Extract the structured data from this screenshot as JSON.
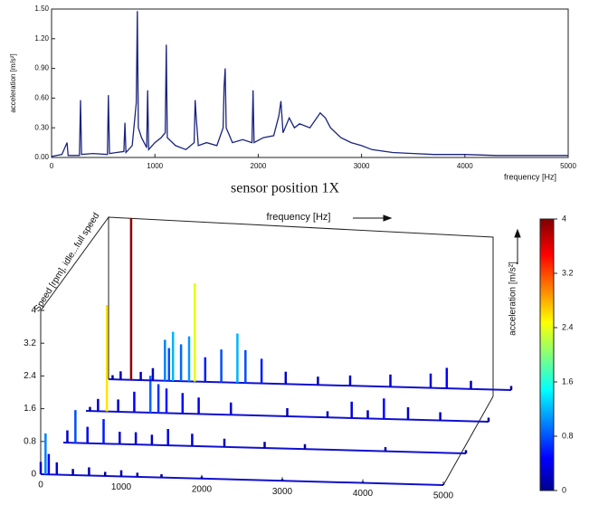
{
  "chart_data": [
    {
      "type": "line",
      "caption": "sensor position 1X",
      "xlabel": "frequency [Hz]",
      "ylabel": "acceleration [m/s²]",
      "color": "#1a237e",
      "xlim": [
        0,
        5000
      ],
      "xticks": [
        0,
        1000,
        2000,
        3000,
        4000,
        5000
      ],
      "ylim": [
        0,
        1.5
      ],
      "yticks": [
        {
          "value": 0,
          "label": "0.00"
        },
        {
          "value": 0.3,
          "label": "0.30"
        },
        {
          "value": 0.6,
          "label": "0.60"
        },
        {
          "value": 0.9,
          "label": "0.90"
        },
        {
          "value": 1.2,
          "label": "1.20"
        },
        {
          "value": 1.5,
          "label": "1.50"
        }
      ],
      "x": [
        0,
        100,
        150,
        160,
        270,
        280,
        290,
        400,
        540,
        550,
        560,
        700,
        710,
        720,
        780,
        820,
        830,
        840,
        870,
        920,
        930,
        940,
        1000,
        1060,
        1100,
        1110,
        1120,
        1200,
        1300,
        1380,
        1390,
        1400,
        1420,
        1500,
        1600,
        1660,
        1670,
        1680,
        1690,
        1750,
        1850,
        1940,
        1950,
        1960,
        2050,
        2150,
        2200,
        2220,
        2240,
        2300,
        2350,
        2400,
        2500,
        2600,
        2650,
        2700,
        2800,
        2900,
        3000,
        3100,
        3300,
        3500,
        3700,
        4000,
        4300,
        4700,
        5000
      ],
      "values": [
        0.01,
        0.03,
        0.15,
        0.02,
        0.02,
        0.58,
        0.03,
        0.04,
        0.03,
        0.63,
        0.04,
        0.06,
        0.35,
        0.05,
        0.12,
        0.55,
        1.48,
        0.3,
        0.2,
        0.1,
        0.68,
        0.08,
        0.15,
        0.2,
        0.25,
        1.14,
        0.2,
        0.12,
        0.08,
        0.15,
        0.58,
        0.4,
        0.12,
        0.15,
        0.12,
        0.3,
        0.72,
        0.9,
        0.3,
        0.15,
        0.18,
        0.15,
        0.68,
        0.15,
        0.2,
        0.22,
        0.42,
        0.57,
        0.25,
        0.4,
        0.3,
        0.34,
        0.3,
        0.45,
        0.4,
        0.3,
        0.2,
        0.15,
        0.12,
        0.08,
        0.05,
        0.04,
        0.03,
        0.03,
        0.02,
        0.02,
        0.02
      ]
    },
    {
      "type": "waterfall",
      "xlabel": "frequency [Hz]",
      "speed_label": "Speed [rpm], idle...full speed",
      "colorbar_label": "acceleration [m/s²]",
      "xlim": [
        0,
        5000
      ],
      "xticks": [
        0,
        1000,
        2000,
        3000,
        4000,
        5000
      ],
      "zlim": [
        0,
        4
      ],
      "zticks": [
        0,
        0.8,
        1.6,
        2.4,
        3.2,
        4
      ],
      "clim": [
        0,
        4
      ],
      "cticks": [
        0,
        0.8,
        1.6,
        2.4,
        3.2,
        4
      ],
      "traces": [
        {
          "x": [
            0,
            60,
            100,
            200,
            400,
            600,
            800,
            1000,
            1200,
            1500,
            2000,
            3000,
            4000,
            5000
          ],
          "values": [
            0.3,
            1.0,
            0.5,
            0.3,
            0.15,
            0.2,
            0.1,
            0.15,
            0.1,
            0.08,
            0.05,
            0.04,
            0.03,
            0.02
          ]
        },
        {
          "x": [
            50,
            150,
            300,
            500,
            700,
            900,
            1100,
            1300,
            1600,
            2000,
            2500,
            3000,
            4000,
            5000
          ],
          "values": [
            0.3,
            0.8,
            0.4,
            0.6,
            0.3,
            0.3,
            0.25,
            0.4,
            0.3,
            0.2,
            0.15,
            0.12,
            0.1,
            0.08
          ]
        },
        {
          "x": [
            50,
            150,
            260,
            400,
            600,
            800,
            900,
            1000,
            1200,
            1400,
            1800,
            2500,
            3000,
            3300,
            3500,
            3700,
            4000,
            4400,
            5000
          ],
          "values": [
            0.1,
            0.3,
            2.6,
            0.3,
            0.5,
            0.9,
            0.7,
            0.6,
            0.5,
            0.4,
            0.3,
            0.2,
            0.15,
            0.4,
            0.2,
            0.5,
            0.3,
            0.2,
            0.1
          ]
        },
        {
          "x": [
            50,
            150,
            280,
            400,
            550,
            700,
            750,
            800,
            900,
            1000,
            1070,
            1200,
            1400,
            1600,
            1700,
            1900,
            2200,
            2600,
            3000,
            3500,
            4000,
            4200,
            4500,
            5000
          ],
          "values": [
            0.1,
            0.2,
            3.95,
            0.2,
            0.3,
            1.0,
            0.8,
            1.2,
            0.9,
            1.1,
            2.4,
            0.6,
            0.8,
            1.2,
            0.8,
            0.6,
            0.3,
            0.2,
            0.25,
            0.3,
            0.35,
            0.5,
            0.2,
            0.1
          ]
        }
      ]
    }
  ]
}
